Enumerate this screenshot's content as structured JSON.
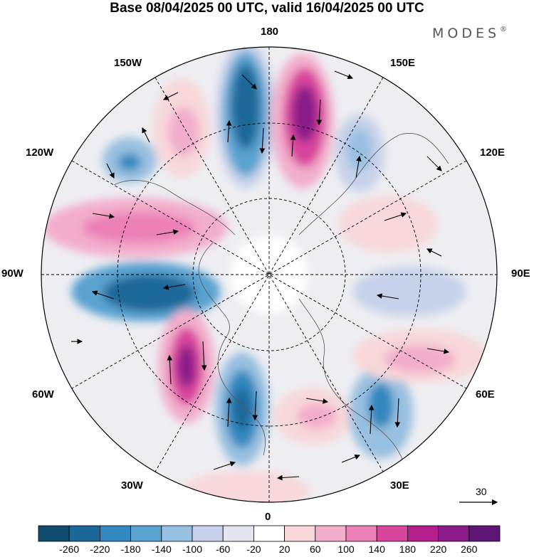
{
  "title": "Base 08/04/2025 00 UTC, valid 16/04/2025 00 UTC",
  "brand": "MODES",
  "brand_mark": "®",
  "map": {
    "longitude_labels": {
      "top": "180",
      "bottom": "0",
      "left": "90W",
      "right": "90E",
      "upper_left_1": "150W",
      "upper_left_2": "120W",
      "lower_left_1": "60W",
      "lower_left_2": "30W",
      "upper_right_1": "150E",
      "upper_right_2": "120E",
      "lower_right_1": "60E",
      "lower_right_2": "30E"
    },
    "reference_vector_label": "30",
    "colors": {
      "strong_negative": "#1a5a86",
      "negative": "#6aa3cf",
      "weak_negative": "#dcdff0",
      "weak_positive": "#f7dcdf",
      "positive": "#e67fb8",
      "strong_positive": "#8a1b88"
    }
  },
  "colorbar": {
    "tick_labels": [
      "-260",
      "-220",
      "-180",
      "-140",
      "-100",
      "-60",
      "-20",
      "20",
      "60",
      "100",
      "140",
      "180",
      "220",
      "260"
    ],
    "colors": [
      "#0f4c6e",
      "#1a6898",
      "#3187bf",
      "#5aa2d0",
      "#98c0e0",
      "#c7d2ea",
      "#e5e5f1",
      "#ffffff",
      "#f8d8da",
      "#f3aecb",
      "#ec80b7",
      "#d8459c",
      "#b51e8d",
      "#8a1b88",
      "#5e1574"
    ]
  }
}
